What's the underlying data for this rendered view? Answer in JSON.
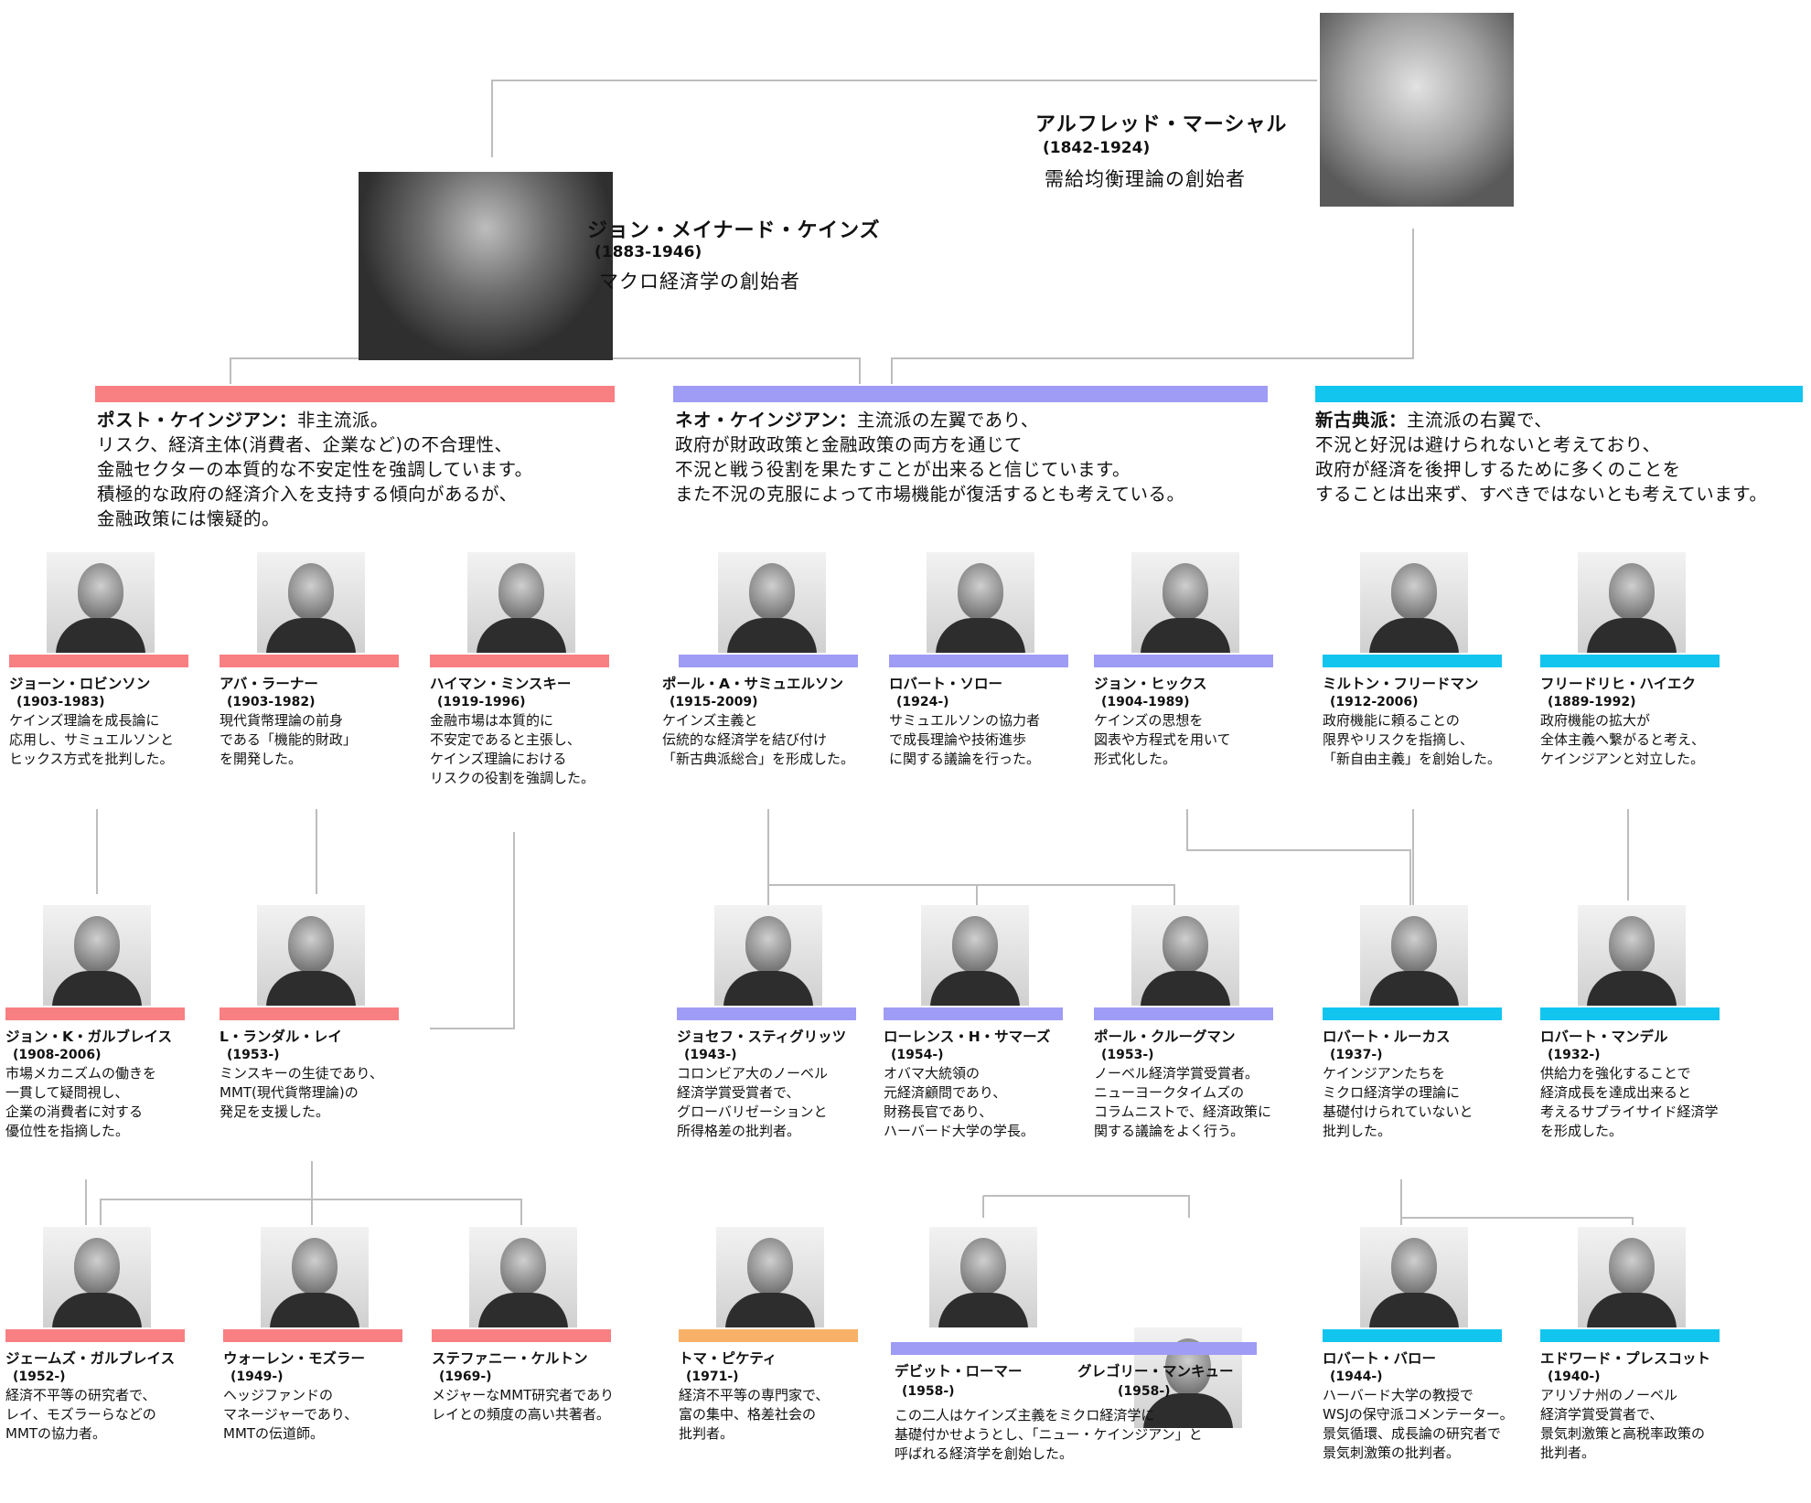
{
  "colors": {
    "post_keynesian": "#f87f82",
    "neo_keynesian": "#9f9cf5",
    "neoclassical": "#12c5ef",
    "piketty": "#f8b168",
    "line": "#bdbdbd"
  },
  "top": {
    "marshall": {
      "name": "アルフレッド・マーシャル",
      "years": "(1842-1924)",
      "role": "需給均衡理論の創始者",
      "icon": "portrait-engraving"
    },
    "keynes": {
      "name": "ジョン・メイナード・ケインズ",
      "years": "(1883-1946)",
      "role": "マクロ経済学の創始者",
      "icon": "portrait-photo"
    }
  },
  "groups": [
    {
      "title": "ポスト・ケインジアン：",
      "lines": [
        "非主流派。",
        "リスク、経済主体(消費者、企業など)の不合理性、",
        "金融セクターの本質的な不安定性を強調しています。",
        "積極的な政府の経済介入を支持する傾向があるが、",
        "金融政策には懐疑的。"
      ]
    },
    {
      "title": "ネオ・ケインジアン：",
      "lines": [
        "主流派の左翼であり、",
        "政府が財政政策と金融政策の両方を通じて",
        "不況と戦う役割を果たすことが出来ると信じています。",
        "また不況の克服によって市場機能が復活するとも考えている。"
      ]
    },
    {
      "title": "新古典派：",
      "lines": [
        "主流派の右翼で、",
        "不況と好況は避けられないと考えており、",
        "政府が経済を後押しするために多くのことを",
        "することは出来ず、すべきではないとも考えています。"
      ]
    }
  ],
  "people": [
    {
      "name": "ジョーン・ロビンソン",
      "years": "(1903-1983)",
      "desc": "ケインズ理論を成長論に\n応用し、サミュエルソンと\nヒックス方式を批判した。"
    },
    {
      "name": "アバ・ラーナー",
      "years": "(1903-1982)",
      "desc": "現代貨幣理論の前身\nである「機能的財政」\nを開発した。"
    },
    {
      "name": "ハイマン・ミンスキー",
      "years": "(1919-1996)",
      "desc": "金融市場は本質的に\n不安定であると主張し、\nケインズ理論における\nリスクの役割を強調した。"
    },
    {
      "name": "ポール・A・サミュエルソン",
      "years": "(1915-2009)",
      "desc": "ケインズ主義と\n伝統的な経済学を結び付け\n「新古典派総合」を形成した。"
    },
    {
      "name": "ロバート・ソロー",
      "years": "(1924-)",
      "desc": "サミュエルソンの協力者\nで成長理論や技術進歩\nに関する議論を行った。"
    },
    {
      "name": "ジョン・ヒックス",
      "years": "(1904-1989)",
      "desc": "ケインズの思想を\n図表や方程式を用いて\n形式化した。"
    },
    {
      "name": "ミルトン・フリードマン",
      "years": "(1912-2006)",
      "desc": "政府機能に頼ることの\n限界やリスクを指摘し、\n「新自由主義」を創始した。"
    },
    {
      "name": "フリードリヒ・ハイエク",
      "years": "(1889-1992)",
      "desc": "政府機能の拡大が\n全体主義へ繋がると考え、\nケインジアンと対立した。"
    },
    {
      "name": "ジョン・K・ガルブレイス",
      "years": "(1908-2006)",
      "desc": "市場メカニズムの働きを\n一貫して疑問視し、\n企業の消費者に対する\n優位性を指摘した。"
    },
    {
      "name": "L・ランダル・レイ",
      "years": "(1953-)",
      "desc": "ミンスキーの生徒であり、\nMMT(現代貨幣理論)の\n発足を支援した。"
    },
    {
      "name": "ジョセフ・スティグリッツ",
      "years": "(1943-)",
      "desc": "コロンビア大のノーベル\n経済学賞受賞者で、\nグローバリゼーションと\n所得格差の批判者。"
    },
    {
      "name": "ローレンス・H・サマーズ",
      "years": "(1954-)",
      "desc": "オバマ大統領の\n元経済顧問であり、\n財務長官であり、\nハーバード大学の学長。"
    },
    {
      "name": "ポール・クルーグマン",
      "years": "(1953-)",
      "desc": "ノーベル経済学賞受賞者。\nニューヨークタイムズの\nコラムニストで、経済政策に\n関する議論をよく行う。"
    },
    {
      "name": "ロバート・ルーカス",
      "years": "(1937-)",
      "desc": "ケインジアンたちを\nミクロ経済学の理論に\n基礎付けられていないと\n批判した。"
    },
    {
      "name": "ロバート・マンデル",
      "years": "(1932-)",
      "desc": "供給力を強化することで\n経済成長を達成出来ると\n考えるサプライサイド経済学\nを形成した。"
    },
    {
      "name": "ジェームズ・ガルブレイス",
      "years": "(1952-)",
      "desc": "経済不平等の研究者で、\nレイ、モズラーらなどの\nMMTの協力者。"
    },
    {
      "name": "ウォーレン・モズラー",
      "years": "(1949-)",
      "desc": "ヘッジファンドの\nマネージャーであり、\nMMTの伝道師。"
    },
    {
      "name": "ステファニー・ケルトン",
      "years": "(1969-)",
      "desc": "メジャーなMMT研究者であり\nレイとの頻度の高い共著者。"
    },
    {
      "name": "トマ・ピケティ",
      "years": "(1971-)",
      "desc": "経済不平等の専門家で、\n富の集中、格差社会の\n批判者。"
    },
    {
      "name": "デビット・ローマー",
      "years": "(1958-)",
      "desc": "この二人はケインズ主義をミクロ経済学に\n基礎付かせようとし、「ニュー・ケインジアン」と\n呼ばれる経済学を創始した。"
    },
    {
      "name": "グレゴリー・マンキュー",
      "years": "(1958-)",
      "desc": ""
    },
    {
      "name": "ロバート・バロー",
      "years": "(1944-)",
      "desc": "ハーバード大学の教授で\nWSJの保守派コメンテーター。\n景気循環、成長論の研究者で\n景気刺激策の批判者。"
    },
    {
      "name": "エドワード・プレスコット",
      "years": "(1940-)",
      "desc": "アリゾナ州のノーベル\n経済学賞受賞者で、\n景気刺激策と高税率政策の\n批判者。"
    }
  ]
}
